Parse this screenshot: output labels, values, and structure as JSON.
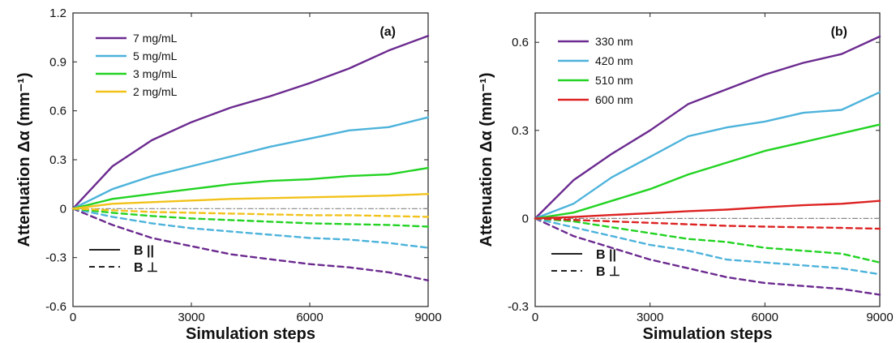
{
  "chart_data": [
    {
      "type": "line",
      "panel_tag": "(a)",
      "xlabel": "Simulation steps",
      "ylabel": "Attenuation Δα (mm⁻¹)",
      "xlim": [
        0,
        9000
      ],
      "ylim": [
        -0.6,
        1.2
      ],
      "x_ticks": [
        0,
        3000,
        6000,
        9000
      ],
      "y_ticks": [
        -0.6,
        -0.3,
        0,
        0.3,
        0.6,
        0.9,
        1.2
      ],
      "x_tick_labels": [
        "0",
        "3000",
        "6000",
        "9000"
      ],
      "y_tick_labels": [
        "-0.6",
        "-0.3",
        "0",
        "0.3",
        "0.6",
        "0.9",
        "1.2"
      ],
      "legend_position": "top-left",
      "x": [
        0,
        1000,
        2000,
        3000,
        4000,
        5000,
        6000,
        7000,
        8000,
        9000
      ],
      "series": [
        {
          "name": "7 mg/mL",
          "color": "#6b2a8f",
          "style": "solid",
          "values": [
            0,
            0.26,
            0.42,
            0.53,
            0.62,
            0.69,
            0.77,
            0.86,
            0.97,
            1.06
          ]
        },
        {
          "name": "5 mg/mL",
          "color": "#4db3db",
          "style": "solid",
          "values": [
            0,
            0.12,
            0.2,
            0.26,
            0.32,
            0.38,
            0.43,
            0.48,
            0.5,
            0.56
          ]
        },
        {
          "name": "3 mg/mL",
          "color": "#22d322",
          "style": "solid",
          "values": [
            0,
            0.06,
            0.09,
            0.12,
            0.15,
            0.17,
            0.18,
            0.2,
            0.21,
            0.25
          ]
        },
        {
          "name": "2 mg/mL",
          "color": "#f2c21a",
          "style": "solid",
          "values": [
            0,
            0.03,
            0.04,
            0.05,
            0.06,
            0.065,
            0.07,
            0.075,
            0.08,
            0.09
          ]
        },
        {
          "color": "#6b2a8f",
          "style": "dashed",
          "values": [
            0,
            -0.1,
            -0.18,
            -0.23,
            -0.28,
            -0.31,
            -0.34,
            -0.36,
            -0.39,
            -0.44
          ]
        },
        {
          "color": "#4db3db",
          "style": "dashed",
          "values": [
            0,
            -0.05,
            -0.09,
            -0.12,
            -0.14,
            -0.16,
            -0.18,
            -0.19,
            -0.21,
            -0.24
          ]
        },
        {
          "color": "#22d322",
          "style": "dashed",
          "values": [
            0,
            -0.025,
            -0.045,
            -0.06,
            -0.07,
            -0.08,
            -0.09,
            -0.095,
            -0.1,
            -0.11
          ]
        },
        {
          "color": "#f2c21a",
          "style": "dashed",
          "values": [
            0,
            -0.01,
            -0.02,
            -0.025,
            -0.03,
            -0.035,
            -0.04,
            -0.04,
            -0.045,
            -0.05
          ]
        },
        {
          "color": "#888888",
          "style": "dashdot",
          "values": [
            0,
            0,
            0,
            0,
            0,
            0,
            0,
            0,
            0,
            0
          ]
        }
      ],
      "line_style_legend": [
        {
          "label": "B ||",
          "style": "solid"
        },
        {
          "label": "B ⊥",
          "style": "dashed"
        }
      ]
    },
    {
      "type": "line",
      "panel_tag": "(b)",
      "xlabel": "Simulation steps",
      "ylabel": "Attenuation Δα (mm⁻¹)",
      "xlim": [
        0,
        9000
      ],
      "ylim": [
        -0.3,
        0.7
      ],
      "x_ticks": [
        0,
        3000,
        6000,
        9000
      ],
      "y_ticks": [
        -0.3,
        0,
        0.3,
        0.6
      ],
      "x_tick_labels": [
        "0",
        "3000",
        "6000",
        "9000"
      ],
      "y_tick_labels": [
        "-0.3",
        "0",
        "0.3",
        "0.6"
      ],
      "legend_position": "top-left",
      "x": [
        0,
        1000,
        2000,
        3000,
        4000,
        5000,
        6000,
        7000,
        8000,
        9000
      ],
      "series": [
        {
          "name": "330 nm",
          "color": "#6b2a8f",
          "style": "solid",
          "values": [
            0,
            0.13,
            0.22,
            0.3,
            0.39,
            0.44,
            0.49,
            0.53,
            0.56,
            0.62
          ]
        },
        {
          "name": "420 nm",
          "color": "#4db3db",
          "style": "solid",
          "values": [
            0,
            0.05,
            0.14,
            0.21,
            0.28,
            0.31,
            0.33,
            0.36,
            0.37,
            0.43
          ]
        },
        {
          "name": "510 nm",
          "color": "#22d322",
          "style": "solid",
          "values": [
            0,
            0.02,
            0.06,
            0.1,
            0.15,
            0.19,
            0.23,
            0.26,
            0.29,
            0.32
          ]
        },
        {
          "name": "600 nm",
          "color": "#dd2222",
          "style": "solid",
          "values": [
            0,
            0.005,
            0.012,
            0.018,
            0.025,
            0.03,
            0.038,
            0.045,
            0.05,
            0.06
          ]
        },
        {
          "color": "#6b2a8f",
          "style": "dashed",
          "values": [
            0,
            -0.06,
            -0.1,
            -0.14,
            -0.17,
            -0.2,
            -0.22,
            -0.23,
            -0.24,
            -0.26
          ]
        },
        {
          "color": "#4db3db",
          "style": "dashed",
          "values": [
            0,
            -0.03,
            -0.06,
            -0.09,
            -0.11,
            -0.14,
            -0.15,
            -0.16,
            -0.17,
            -0.19
          ]
        },
        {
          "color": "#22d322",
          "style": "dashed",
          "values": [
            0,
            -0.01,
            -0.03,
            -0.05,
            -0.07,
            -0.08,
            -0.1,
            -0.11,
            -0.12,
            -0.15
          ]
        },
        {
          "color": "#dd2222",
          "style": "dashed",
          "values": [
            0,
            -0.005,
            -0.01,
            -0.015,
            -0.02,
            -0.025,
            -0.028,
            -0.03,
            -0.032,
            -0.035
          ]
        },
        {
          "color": "#888888",
          "style": "dashdot",
          "values": [
            0,
            0,
            0,
            0,
            0,
            0,
            0,
            0,
            0,
            0
          ]
        }
      ],
      "line_style_legend": [
        {
          "label": "B ||",
          "style": "solid"
        },
        {
          "label": "B ⊥",
          "style": "dashed"
        }
      ]
    }
  ]
}
